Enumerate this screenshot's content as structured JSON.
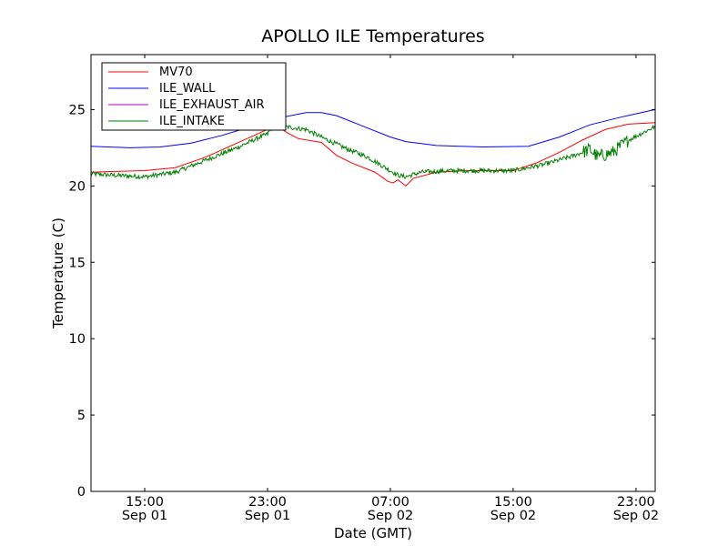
{
  "chart_data": {
    "type": "line",
    "title": "APOLLO ILE Temperatures",
    "xlabel": "Date (GMT)",
    "ylabel": "Temperature (C)",
    "xlim": [
      "Sep 01 11:30",
      "Sep 03 00:15"
    ],
    "ylim": [
      0,
      28.6
    ],
    "yticks": [
      0,
      5,
      10,
      15,
      20,
      25
    ],
    "xticks": [
      {
        "x": "Sep 01 15:00",
        "time": "15:00",
        "date": "Sep 01"
      },
      {
        "x": "Sep 01 23:00",
        "time": "23:00",
        "date": "Sep 01"
      },
      {
        "x": "Sep 02 07:00",
        "time": "07:00",
        "date": "Sep 02"
      },
      {
        "x": "Sep 02 15:00",
        "time": "15:00",
        "date": "Sep 02"
      },
      {
        "x": "Sep 02 23:00",
        "time": "23:00",
        "date": "Sep 02"
      }
    ],
    "grid": false,
    "legend_position": "top-left",
    "series": [
      {
        "name": "MV70",
        "color": "#ff0000",
        "noisy": false,
        "points": [
          [
            "Sep 01 11:30",
            20.9
          ],
          [
            "Sep 01 13:00",
            20.95
          ],
          [
            "Sep 01 15:00",
            21.0
          ],
          [
            "Sep 01 17:00",
            21.2
          ],
          [
            "Sep 01 19:00",
            21.9
          ],
          [
            "Sep 01 21:00",
            22.8
          ],
          [
            "Sep 01 23:00",
            23.7
          ],
          [
            "Sep 01 23:30",
            24.0
          ],
          [
            "Sep 02 00:15",
            23.5
          ],
          [
            "Sep 02 01:00",
            23.1
          ],
          [
            "Sep 02 02:30",
            22.85
          ],
          [
            "Sep 02 03:30",
            22.0
          ],
          [
            "Sep 02 04:30",
            21.5
          ],
          [
            "Sep 02 06:00",
            20.9
          ],
          [
            "Sep 02 06:50",
            20.3
          ],
          [
            "Sep 02 07:10",
            20.2
          ],
          [
            "Sep 02 07:30",
            20.4
          ],
          [
            "Sep 02 08:00",
            20.0
          ],
          [
            "Sep 02 08:30",
            20.5
          ],
          [
            "Sep 02 10:00",
            20.9
          ],
          [
            "Sep 02 12:00",
            21.0
          ],
          [
            "Sep 02 15:00",
            21.0
          ],
          [
            "Sep 02 16:30",
            21.5
          ],
          [
            "Sep 02 18:00",
            22.2
          ],
          [
            "Sep 02 19:30",
            23.0
          ],
          [
            "Sep 02 21:00",
            23.7
          ],
          [
            "Sep 02 22:30",
            24.05
          ],
          [
            "Sep 03 00:15",
            24.15
          ]
        ]
      },
      {
        "name": "ILE_WALL",
        "color": "#0000ff",
        "noisy": false,
        "points": [
          [
            "Sep 01 11:30",
            22.6
          ],
          [
            "Sep 01 14:00",
            22.5
          ],
          [
            "Sep 01 16:00",
            22.55
          ],
          [
            "Sep 01 18:00",
            22.8
          ],
          [
            "Sep 01 20:00",
            23.3
          ],
          [
            "Sep 01 22:00",
            23.9
          ],
          [
            "Sep 02 00:00",
            24.5
          ],
          [
            "Sep 02 01:30",
            24.8
          ],
          [
            "Sep 02 02:30",
            24.8
          ],
          [
            "Sep 02 03:30",
            24.6
          ],
          [
            "Sep 02 05:00",
            24.0
          ],
          [
            "Sep 02 07:00",
            23.2
          ],
          [
            "Sep 02 08:00",
            22.9
          ],
          [
            "Sep 02 10:00",
            22.65
          ],
          [
            "Sep 02 13:00",
            22.55
          ],
          [
            "Sep 02 16:00",
            22.6
          ],
          [
            "Sep 02 18:00",
            23.2
          ],
          [
            "Sep 02 20:00",
            24.0
          ],
          [
            "Sep 02 22:00",
            24.5
          ],
          [
            "Sep 03 00:15",
            25.0
          ]
        ]
      },
      {
        "name": "ILE_EXHAUST_AIR",
        "color": "#bf00bf",
        "noisy": false,
        "points": []
      },
      {
        "name": "ILE_INTAKE",
        "color": "#007f00",
        "noisy": true,
        "points": [
          [
            "Sep 01 11:30",
            20.8
          ],
          [
            "Sep 01 13:00",
            20.7
          ],
          [
            "Sep 01 15:00",
            20.6
          ],
          [
            "Sep 01 17:00",
            20.9
          ],
          [
            "Sep 01 19:00",
            21.7
          ],
          [
            "Sep 01 21:00",
            22.5
          ],
          [
            "Sep 01 22:30",
            23.2
          ],
          [
            "Sep 01 23:00",
            23.4
          ],
          [
            "Sep 01 23:20",
            23.9
          ],
          [
            "Sep 02 00:00",
            23.9
          ],
          [
            "Sep 02 01:30",
            23.7
          ],
          [
            "Sep 02 02:30",
            23.2
          ],
          [
            "Sep 02 04:00",
            22.5
          ],
          [
            "Sep 02 05:30",
            21.9
          ],
          [
            "Sep 02 06:30",
            21.3
          ],
          [
            "Sep 02 07:00",
            21.0
          ],
          [
            "Sep 02 07:30",
            20.7
          ],
          [
            "Sep 02 08:00",
            20.6
          ],
          [
            "Sep 02 09:00",
            20.9
          ],
          [
            "Sep 02 11:00",
            21.0
          ],
          [
            "Sep 02 13:00",
            21.0
          ],
          [
            "Sep 02 15:00",
            21.0
          ],
          [
            "Sep 02 17:00",
            21.4
          ],
          [
            "Sep 02 19:00",
            22.0
          ],
          [
            "Sep 02 20:00",
            22.4
          ],
          [
            "Sep 02 20:30",
            21.9
          ],
          [
            "Sep 02 21:30",
            22.2
          ],
          [
            "Sep 02 22:30",
            23.0
          ],
          [
            "Sep 03 00:15",
            23.9
          ]
        ]
      }
    ]
  }
}
